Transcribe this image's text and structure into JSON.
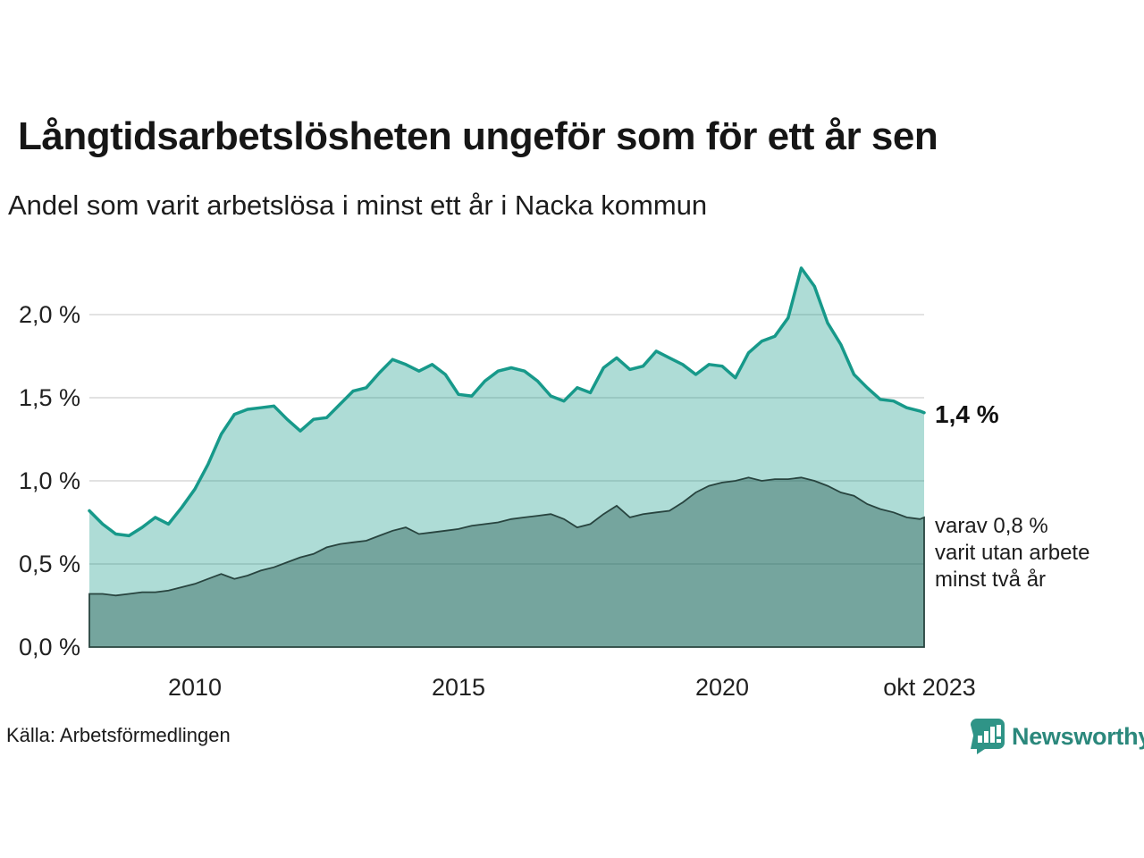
{
  "header": {
    "title": "Långtidsarbetslösheten ungeför som för ett år sen",
    "subtitle": "Andel som varit arbetslösa i minst ett år i Nacka kommun"
  },
  "annotations": {
    "total_label": "1,4 %",
    "dark_label_lines": [
      "varav 0,8 %",
      "varit utan arbete",
      "minst två år"
    ]
  },
  "axes": {
    "y_labels": [
      "2,0 %",
      "1,5 %",
      "1,0 %",
      "0,5 %",
      "0,0 %"
    ],
    "x_labels": [
      "2010",
      "2015",
      "2020",
      "okt 2023"
    ]
  },
  "footer": {
    "source": "Källa: Arbetsförmedlingen",
    "logo_text": "Newsworthy"
  },
  "colors": {
    "line_total": "#17998a",
    "fill_total": "rgba(24,154,138,0.35)",
    "line_dark": "#28443f",
    "fill_dark": "rgba(23,77,68,0.38)",
    "grid": "#d8d8d8",
    "logo_teal": "#2f9487",
    "logo_text_teal": "#2b887c"
  },
  "chart_data": {
    "type": "area",
    "title": "Långtidsarbetslösheten ungeför som för ett år sen",
    "subtitle": "Andel som varit arbetslösa i minst ett år i Nacka kommun",
    "source": "Källa: Arbetsförmedlingen",
    "unit": "%",
    "x_tick_labels": [
      "2010",
      "2015",
      "2020",
      "okt 2023"
    ],
    "y_tick_labels": [
      "0,0 %",
      "0,5 %",
      "1,0 %",
      "1,5 %",
      "2,0 %"
    ],
    "yticks": [
      0.5,
      1.0,
      1.5,
      2.0
    ],
    "ylim": [
      0,
      2.4
    ],
    "grid": true,
    "legend_position": "right-annotations",
    "x": [
      2008.0,
      2008.25,
      2008.5,
      2008.75,
      2009.0,
      2009.25,
      2009.5,
      2009.75,
      2010.0,
      2010.25,
      2010.5,
      2010.75,
      2011.0,
      2011.25,
      2011.5,
      2011.75,
      2012.0,
      2012.25,
      2012.5,
      2012.75,
      2013.0,
      2013.25,
      2013.5,
      2013.75,
      2014.0,
      2014.25,
      2014.5,
      2014.75,
      2015.0,
      2015.25,
      2015.5,
      2015.75,
      2016.0,
      2016.25,
      2016.5,
      2016.75,
      2017.0,
      2017.25,
      2017.5,
      2017.75,
      2018.0,
      2018.25,
      2018.5,
      2018.75,
      2019.0,
      2019.25,
      2019.5,
      2019.75,
      2020.0,
      2020.25,
      2020.5,
      2020.75,
      2021.0,
      2021.25,
      2021.5,
      2021.75,
      2022.0,
      2022.25,
      2022.5,
      2022.75,
      2023.0,
      2023.25,
      2023.5,
      2023.75,
      2023.83
    ],
    "series": [
      {
        "name": "Andel som varit arbetslösa i minst ett år",
        "latest_value": 1.4,
        "values": [
          0.82,
          0.74,
          0.68,
          0.67,
          0.72,
          0.78,
          0.74,
          0.84,
          0.95,
          1.1,
          1.28,
          1.4,
          1.43,
          1.44,
          1.45,
          1.37,
          1.3,
          1.37,
          1.38,
          1.46,
          1.54,
          1.56,
          1.65,
          1.73,
          1.7,
          1.66,
          1.7,
          1.64,
          1.52,
          1.51,
          1.6,
          1.66,
          1.68,
          1.66,
          1.6,
          1.51,
          1.48,
          1.56,
          1.53,
          1.68,
          1.74,
          1.67,
          1.69,
          1.78,
          1.74,
          1.7,
          1.64,
          1.7,
          1.69,
          1.62,
          1.77,
          1.84,
          1.87,
          1.98,
          2.28,
          2.17,
          1.95,
          1.82,
          1.64,
          1.56,
          1.49,
          1.48,
          1.44,
          1.42,
          1.41
        ]
      },
      {
        "name": "varav utan arbete minst två år",
        "latest_value": 0.8,
        "values": [
          0.32,
          0.32,
          0.31,
          0.32,
          0.33,
          0.33,
          0.34,
          0.36,
          0.38,
          0.41,
          0.44,
          0.41,
          0.43,
          0.46,
          0.48,
          0.51,
          0.54,
          0.56,
          0.6,
          0.62,
          0.63,
          0.64,
          0.67,
          0.7,
          0.72,
          0.68,
          0.69,
          0.7,
          0.71,
          0.73,
          0.74,
          0.75,
          0.77,
          0.78,
          0.79,
          0.8,
          0.77,
          0.72,
          0.74,
          0.8,
          0.85,
          0.78,
          0.8,
          0.81,
          0.82,
          0.87,
          0.93,
          0.97,
          0.99,
          1.0,
          1.02,
          1.0,
          1.01,
          1.01,
          1.02,
          1.0,
          0.97,
          0.93,
          0.91,
          0.86,
          0.83,
          0.81,
          0.78,
          0.77,
          0.78
        ]
      }
    ]
  }
}
